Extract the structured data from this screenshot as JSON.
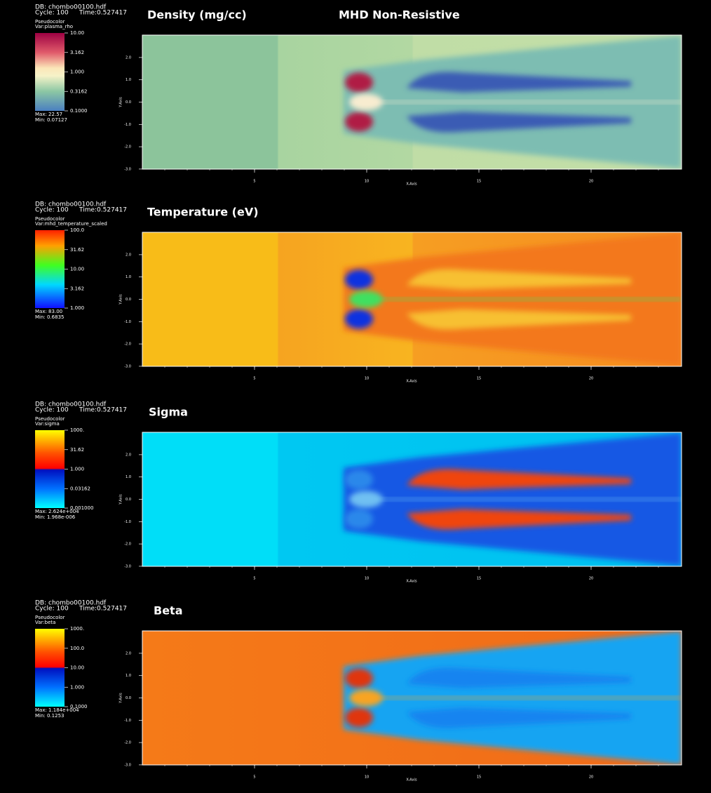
{
  "title": "MHD Non-Resistive",
  "axes": {
    "x_label": "X-Axis",
    "y_label": "Y-Axis",
    "x_ticks": [
      "5",
      "10",
      "15",
      "20"
    ],
    "y_ticks": [
      "2.0",
      "1.0",
      "0.0",
      "-1.0",
      "-2.0",
      "-3.0"
    ]
  },
  "panels": [
    {
      "title": "Density (mg/cc)",
      "db": "DB: chombo00100.hdf",
      "cycle": "Cycle: 100",
      "time": "Time:0.527417",
      "plot": "Pseudocolor",
      "var": "Var:plasma_rho",
      "legend_ticks": [
        "10.00",
        "3.162",
        "1.000",
        "0.3162",
        "0.1000"
      ],
      "max": "Max: 22.57",
      "min": "Min: 0.07127"
    },
    {
      "title": "Temperature (eV)",
      "db": "DB: chombo00100.hdf",
      "cycle": "Cycle: 100",
      "time": "Time:0.527417",
      "plot": "Pseudocolor",
      "var": "Var:mhd_temperature_scaled",
      "legend_ticks": [
        "100.0",
        "31.62",
        "10.00",
        "3.162",
        "1.000"
      ],
      "max": "Max: 83.00",
      "min": "Min: 0.6835"
    },
    {
      "title": "Sigma",
      "db": "DB: chombo00100.hdf",
      "cycle": "Cycle: 100",
      "time": "Time:0.527417",
      "plot": "Pseudocolor",
      "var": "Var:sigma",
      "legend_ticks": [
        "1000.",
        "31.62",
        "1.000",
        "0.03162",
        "0.001000"
      ],
      "max": "Max: 2.624e+004",
      "min": "Min: 1.968e-006"
    },
    {
      "title": "Beta",
      "db": "DB: chombo00100.hdf",
      "cycle": "Cycle: 100",
      "time": "Time:0.527417",
      "plot": "Pseudocolor",
      "var": "Var:beta",
      "legend_ticks": [
        "1000.",
        "100.0",
        "10.00",
        "1.000",
        "0.1000"
      ],
      "max": "Max: 1.184e+004",
      "min": "Min: 0.1253"
    }
  ]
}
